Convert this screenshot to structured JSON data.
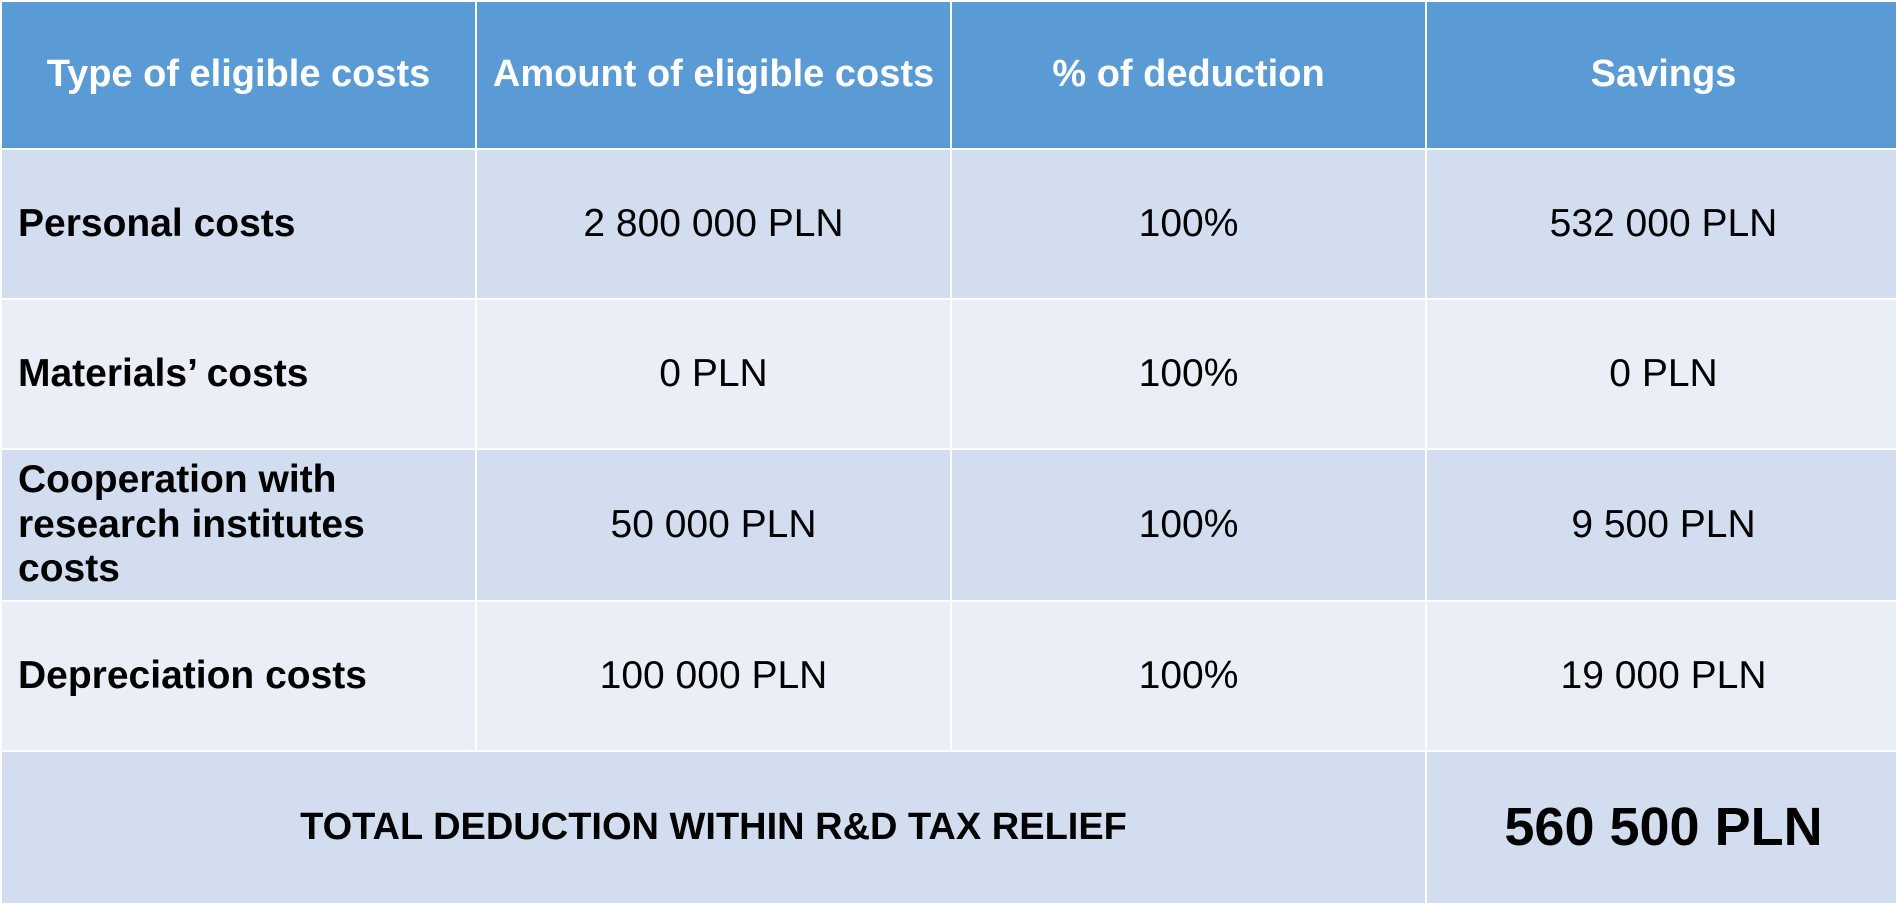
{
  "table": {
    "headers": [
      "Type of eligible costs",
      "Amount of eligible costs",
      "% of deduction",
      "Savings"
    ],
    "rows": [
      {
        "type": "Personal costs",
        "amount": "2 800 000 PLN",
        "deduction": "100%",
        "savings": "532 000 PLN"
      },
      {
        "type": "Materials’ costs",
        "amount": "0 PLN",
        "deduction": "100%",
        "savings": "0 PLN"
      },
      {
        "type": "Cooperation with research institutes costs",
        "amount": "50 000 PLN",
        "deduction": "100%",
        "savings": "9 500 PLN"
      },
      {
        "type": "Depreciation costs",
        "amount": "100 000 PLN",
        "deduction": "100%",
        "savings": "19 000 PLN"
      }
    ],
    "total": {
      "label": "TOTAL DEDUCTION WITHIN R&D TAX RELIEF",
      "value": "560 500 PLN"
    }
  },
  "colors": {
    "header_bg": "#5b9bd5",
    "row_dark": "#d2deef",
    "row_light": "#eaeff7"
  }
}
